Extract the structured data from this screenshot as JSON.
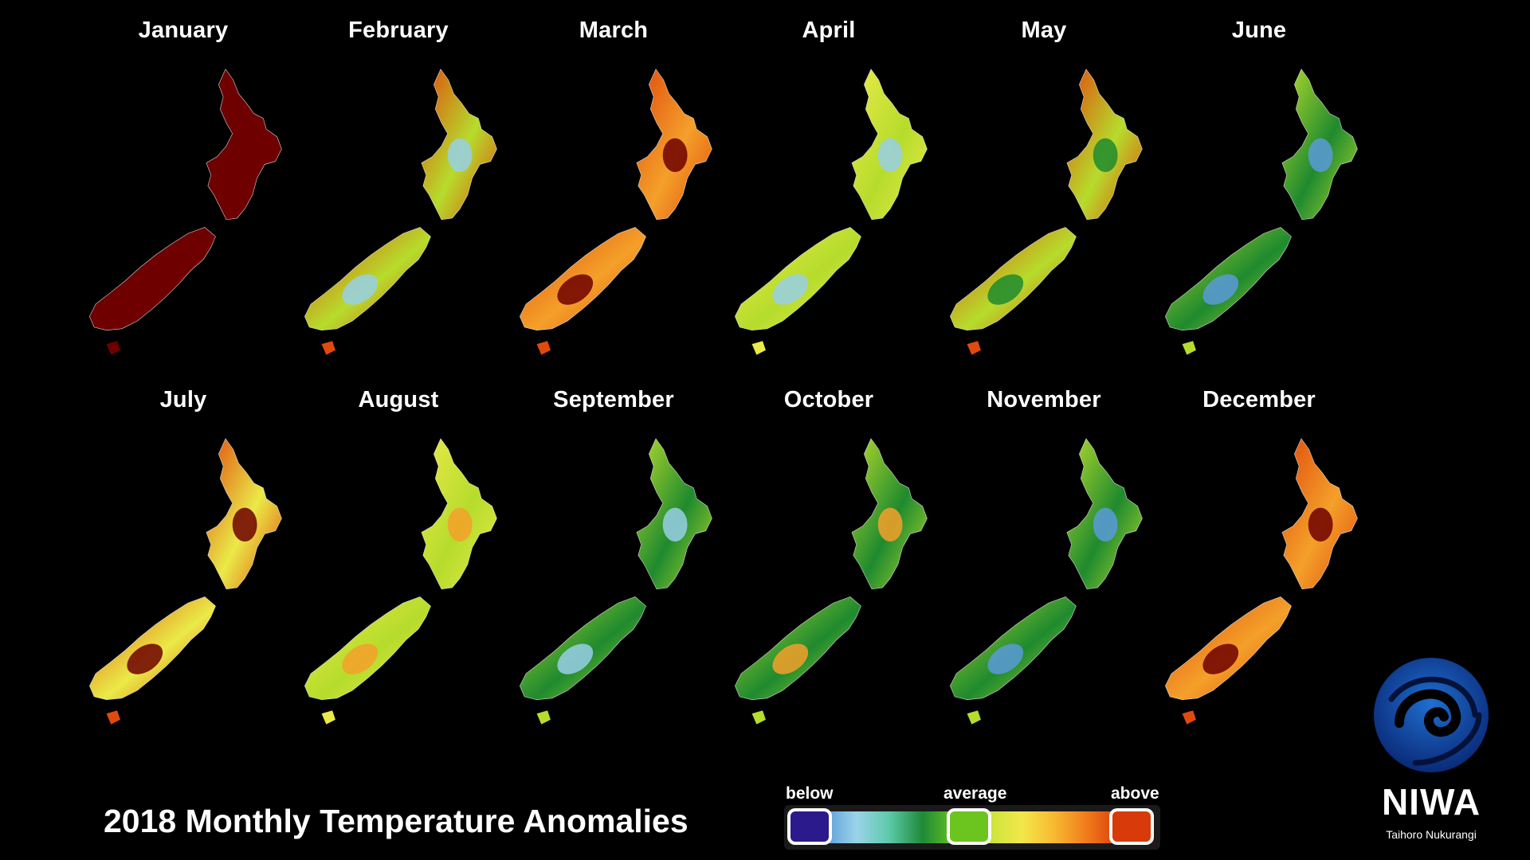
{
  "title": "2018 Monthly Temperature Anomalies",
  "legend": {
    "below": "below",
    "average": "average",
    "above": "above"
  },
  "logo": {
    "name": "NIWA",
    "subtitle": "Taihoro Nukurangi"
  },
  "colors": {
    "scale": [
      "#2b1a8c",
      "#5a9ad8",
      "#9ad4ea",
      "#5cc9a8",
      "#1e8a38",
      "#6cc41e",
      "#c8e43a",
      "#f2e84a",
      "#f7b830",
      "#f07a1a",
      "#d83a0a",
      "#8a0d05"
    ],
    "above_strong": "#6e0000",
    "above": "#e04a0c",
    "warm": "#f4a02a",
    "yellow": "#eaea48",
    "lime": "#b6dc2c",
    "green": "#1f8a2e",
    "lightblue": "#98cfe6",
    "blue": "#5a9ad8"
  },
  "months": [
    {
      "name": "January",
      "palette": [
        "above_strong",
        "above_strong",
        "above_strong"
      ]
    },
    {
      "name": "February",
      "palette": [
        "above",
        "lime",
        "lightblue"
      ]
    },
    {
      "name": "March",
      "palette": [
        "above",
        "warm",
        "above_strong"
      ]
    },
    {
      "name": "April",
      "palette": [
        "yellow",
        "lime",
        "lightblue"
      ]
    },
    {
      "name": "May",
      "palette": [
        "above",
        "lime",
        "green"
      ]
    },
    {
      "name": "June",
      "palette": [
        "lime",
        "green",
        "blue"
      ]
    },
    {
      "name": "July",
      "palette": [
        "above",
        "yellow",
        "above_strong"
      ]
    },
    {
      "name": "August",
      "palette": [
        "yellow",
        "lime",
        "warm"
      ]
    },
    {
      "name": "September",
      "palette": [
        "lime",
        "green",
        "lightblue"
      ]
    },
    {
      "name": "October",
      "palette": [
        "lime",
        "green",
        "warm"
      ]
    },
    {
      "name": "November",
      "palette": [
        "lime",
        "green",
        "blue"
      ]
    },
    {
      "name": "December",
      "palette": [
        "above",
        "warm",
        "above_strong"
      ]
    }
  ]
}
